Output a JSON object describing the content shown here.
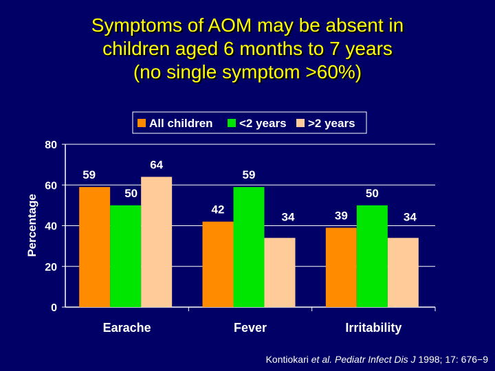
{
  "title_lines": [
    "Symptoms of AOM may be absent in",
    "children aged 6 months to 7 years",
    "(no single symptom >60%)"
  ],
  "citation": {
    "authors": "Kontiokari",
    "etal": "et al.",
    "journal": "Pediatr Infect Dis J",
    "details": "1998; 17: 676−9"
  },
  "colors": {
    "background": "#000066",
    "title": "#FFFF00",
    "axis_text": "#FFFFFF",
    "grid": "#FFFFFF"
  },
  "chart_data": {
    "type": "bar",
    "categories": [
      "Earache",
      "Fever",
      "Irritability"
    ],
    "series": [
      {
        "name": "All children",
        "values": [
          59,
          42,
          39
        ],
        "color": "#FF8C00"
      },
      {
        "name": "<2 years",
        "values": [
          50,
          59,
          50
        ],
        "color": "#00E600"
      },
      {
        "name": ">2 years",
        "values": [
          64,
          34,
          34
        ],
        "color": "#FFCC99"
      }
    ],
    "ylabel": "Percentage",
    "xlabel": "",
    "ylim": [
      0,
      80
    ],
    "yticks": [
      0,
      20,
      40,
      60,
      80
    ],
    "grid": true,
    "legend_position": "top-center"
  }
}
